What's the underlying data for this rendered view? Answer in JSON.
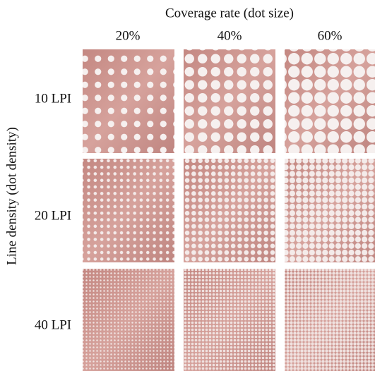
{
  "figure": {
    "title": "Coverage rate (dot size)",
    "row_axis_label": "Line density (dot density)",
    "columns": [
      "20%",
      "40%",
      "60%"
    ],
    "rows": [
      "10 LPI",
      "20 LPI",
      "40 LPI"
    ]
  }
}
